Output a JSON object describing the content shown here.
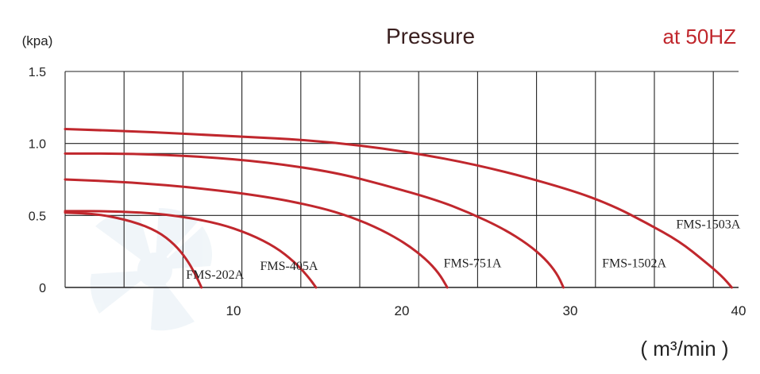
{
  "chart_data": {
    "type": "line",
    "title": "Pressure",
    "subtitle": "at 50HZ",
    "ylabel": "(kpa)",
    "xlabel": "( m³/min )",
    "xlim": [
      0,
      40
    ],
    "ylim": [
      0,
      1.5
    ],
    "x_ticks": [
      {
        "value": 10,
        "label": "10"
      },
      {
        "value": 20,
        "label": "20"
      },
      {
        "value": 30,
        "label": "30"
      },
      {
        "value": 40,
        "label": "40"
      }
    ],
    "y_ticks": [
      {
        "value": 0,
        "label": "0"
      },
      {
        "value": 0.5,
        "label": "0.5"
      },
      {
        "value": 1.0,
        "label": "1.0"
      },
      {
        "value": 1.5,
        "label": "1.5"
      }
    ],
    "grid": true,
    "colors": {
      "curve": "#c0272d",
      "subtitle": "#c0272d",
      "title": "#3a1f1f",
      "grid": "#222222",
      "text": "#222222"
    },
    "series": [
      {
        "name": "FMS-202A",
        "points": [
          [
            0,
            0.52
          ],
          [
            2,
            0.51
          ],
          [
            4,
            0.46
          ],
          [
            5.5,
            0.39
          ],
          [
            6.5,
            0.3
          ],
          [
            7.2,
            0.2
          ],
          [
            7.7,
            0.1
          ],
          [
            8.1,
            0
          ]
        ],
        "label_at": [
          8.9,
          0.06
        ]
      },
      {
        "name": "FMS-405A",
        "points": [
          [
            0,
            0.53
          ],
          [
            3,
            0.53
          ],
          [
            6,
            0.51
          ],
          [
            9,
            0.45
          ],
          [
            11,
            0.37
          ],
          [
            12.5,
            0.28
          ],
          [
            13.6,
            0.18
          ],
          [
            14.4,
            0.08
          ],
          [
            14.9,
            0
          ]
        ],
        "label_at": [
          13.3,
          0.12
        ]
      },
      {
        "name": "FMS-751A",
        "points": [
          [
            0,
            0.75
          ],
          [
            4,
            0.73
          ],
          [
            8,
            0.69
          ],
          [
            12,
            0.63
          ],
          [
            15,
            0.56
          ],
          [
            17,
            0.49
          ],
          [
            18.8,
            0.4
          ],
          [
            20.3,
            0.3
          ],
          [
            21.4,
            0.2
          ],
          [
            22.2,
            0.1
          ],
          [
            22.7,
            0
          ]
        ],
        "label_at": [
          24.2,
          0.14
        ]
      },
      {
        "name": "FMS-1502A",
        "points": [
          [
            0,
            0.93
          ],
          [
            4,
            0.93
          ],
          [
            8,
            0.91
          ],
          [
            12,
            0.87
          ],
          [
            16,
            0.8
          ],
          [
            19,
            0.71
          ],
          [
            22,
            0.61
          ],
          [
            24,
            0.52
          ],
          [
            26,
            0.41
          ],
          [
            27.5,
            0.3
          ],
          [
            28.5,
            0.2
          ],
          [
            29.2,
            0.1
          ],
          [
            29.6,
            0
          ]
        ],
        "label_at": [
          33.8,
          0.14
        ]
      },
      {
        "name": "FMS-1503A",
        "points": [
          [
            0,
            1.1
          ],
          [
            5,
            1.08
          ],
          [
            10,
            1.05
          ],
          [
            15,
            1.02
          ],
          [
            20,
            0.95
          ],
          [
            25,
            0.84
          ],
          [
            30,
            0.68
          ],
          [
            32.5,
            0.57
          ],
          [
            34.5,
            0.45
          ],
          [
            36.5,
            0.32
          ],
          [
            38,
            0.18
          ],
          [
            39,
            0.08
          ],
          [
            39.6,
            0
          ]
        ],
        "label_at": [
          38.2,
          0.41
        ]
      }
    ]
  }
}
